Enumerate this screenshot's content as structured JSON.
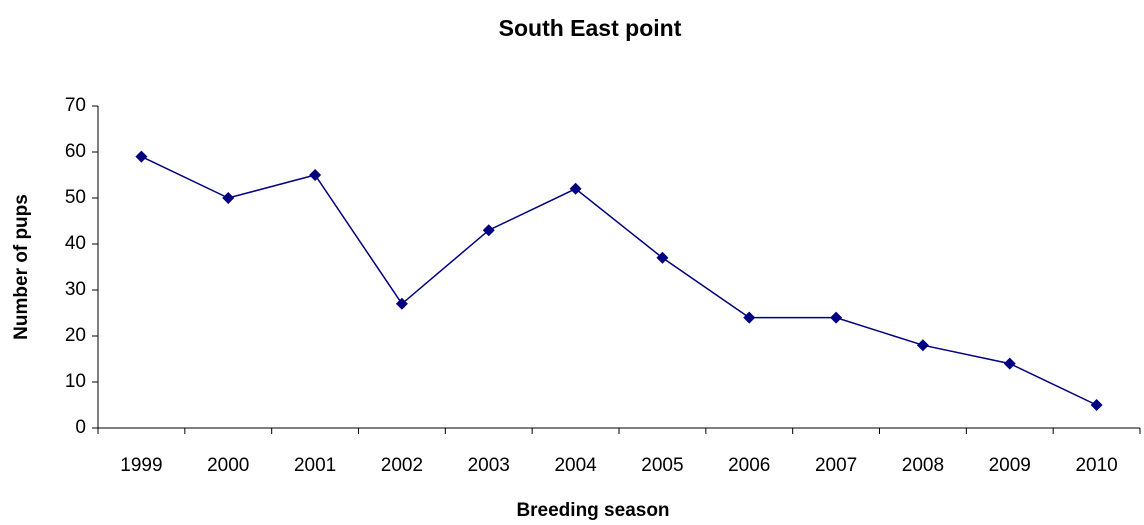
{
  "chart_data": {
    "type": "line",
    "title": "South East point",
    "x_label": "Breeding season",
    "y_label": "Number of pups",
    "categories": [
      "1999",
      "2000",
      "2001",
      "2002",
      "2003",
      "2004",
      "2005",
      "2006",
      "2007",
      "2008",
      "2009",
      "2010"
    ],
    "values": [
      59,
      50,
      55,
      27,
      43,
      52,
      37,
      24,
      24,
      18,
      14,
      5
    ],
    "color": "#000080",
    "ylim": [
      0,
      70
    ],
    "yticks": [
      0,
      10,
      20,
      30,
      40,
      50,
      60,
      70
    ],
    "grid": false
  }
}
